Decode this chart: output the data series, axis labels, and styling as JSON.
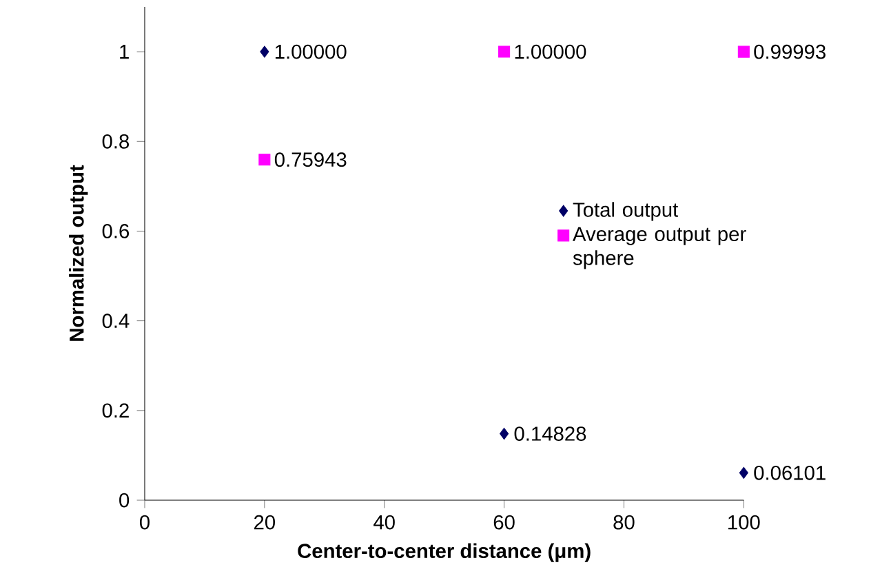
{
  "chart_data": {
    "type": "scatter",
    "xlabel": "Center-to-center distance (μm)",
    "ylabel": "Normalized output",
    "xlim": [
      0,
      100
    ],
    "xticks": [
      0,
      20,
      40,
      60,
      80,
      100
    ],
    "ylim": [
      0,
      1.1
    ],
    "yticks": [
      0,
      0.2,
      0.4,
      0.6,
      0.8,
      1
    ],
    "legend": "right",
    "grid": false,
    "series": [
      {
        "name": "Total output",
        "color": "#000066",
        "marker": "diamond",
        "x": [
          20,
          60,
          100
        ],
        "values": [
          1.0,
          0.14828,
          0.06101
        ],
        "value_labels": [
          "1.00000",
          "0.14828",
          "0.06101"
        ]
      },
      {
        "name": "Average output per sphere",
        "color": "#ff00ff",
        "marker": "square",
        "x": [
          20,
          60,
          100
        ],
        "values": [
          0.75943,
          1.0,
          0.99993
        ],
        "value_labels": [
          "0.75943",
          "1.00000",
          "0.99993"
        ]
      }
    ]
  }
}
